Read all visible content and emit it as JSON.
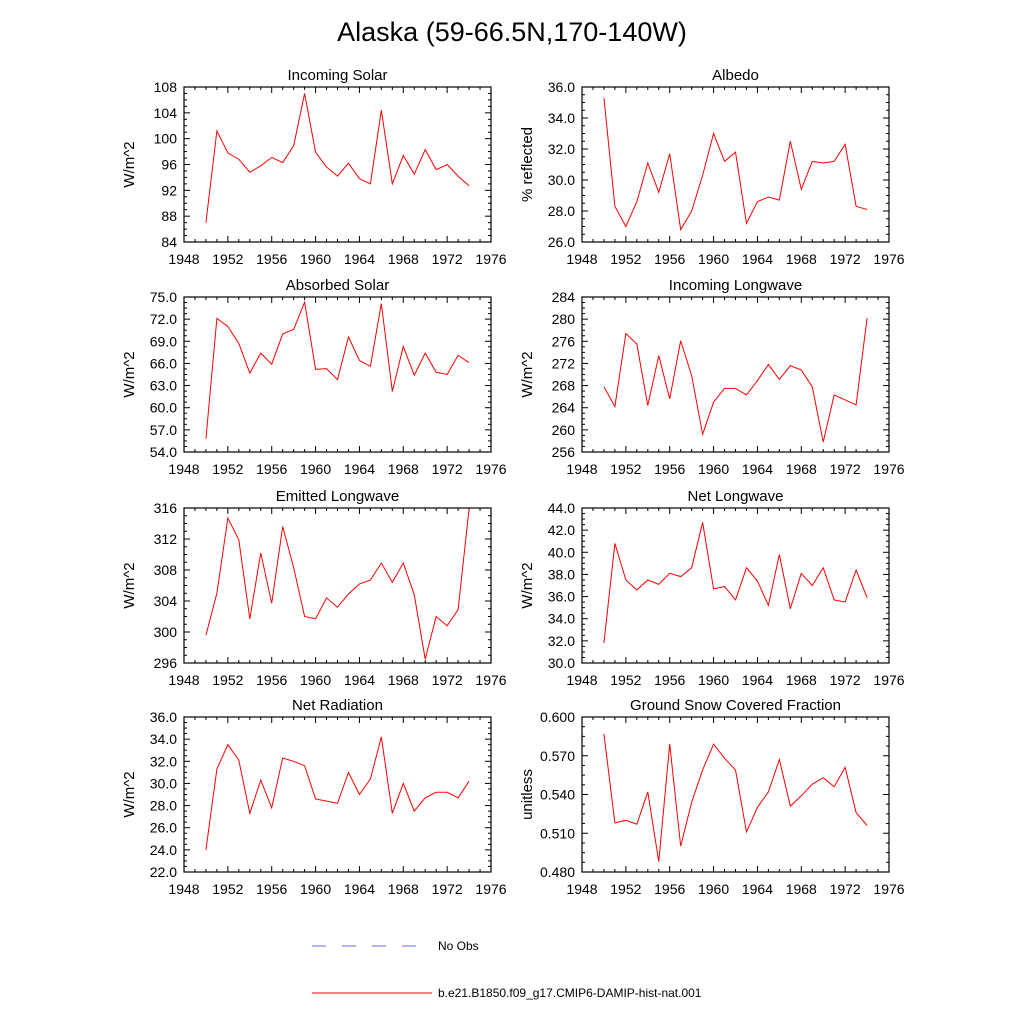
{
  "figure": {
    "title": "Alaska (59-66.5N,170-140W)",
    "legend": [
      {
        "label": "No Obs",
        "color": "#6a6ad8",
        "style": "dashed"
      },
      {
        "label": "b.e21.B1850.f09_g17.CMIP6-DAMIP-hist-nat.001",
        "color": "#ff0000",
        "style": "solid"
      }
    ]
  },
  "chart_data": [
    {
      "type": "line",
      "title": "Incoming Solar",
      "ylabel": "W/m^2",
      "xlim": [
        1948,
        1976
      ],
      "xticks": [
        1948,
        1952,
        1956,
        1960,
        1964,
        1968,
        1972,
        1976
      ],
      "ylim": [
        84,
        108
      ],
      "yticks": [
        "84",
        "88",
        "92",
        "96",
        "100",
        "104",
        "108"
      ],
      "x": [
        1950,
        1951,
        1952,
        1953,
        1954,
        1955,
        1956,
        1957,
        1958,
        1959,
        1960,
        1961,
        1962,
        1963,
        1964,
        1965,
        1966,
        1967,
        1968,
        1969,
        1970,
        1971,
        1972,
        1973,
        1974
      ],
      "series": [
        {
          "color": "#ff0000",
          "values": [
            87.0,
            101.2,
            97.8,
            96.8,
            94.8,
            95.8,
            97.1,
            96.3,
            98.9,
            107.0,
            97.9,
            95.6,
            94.2,
            96.2,
            93.8,
            93.0,
            104.4,
            93.0,
            97.4,
            94.5,
            98.3,
            95.2,
            96.0,
            94.2,
            92.7
          ]
        }
      ]
    },
    {
      "type": "line",
      "title": "Albedo",
      "ylabel": "% reflected",
      "xlim": [
        1948,
        1976
      ],
      "xticks": [
        1948,
        1952,
        1956,
        1960,
        1964,
        1968,
        1972,
        1976
      ],
      "ylim": [
        26,
        36
      ],
      "yticks": [
        "26.0",
        "28.0",
        "30.0",
        "32.0",
        "34.0",
        "36.0"
      ],
      "x": [
        1950,
        1951,
        1952,
        1953,
        1954,
        1955,
        1956,
        1957,
        1958,
        1959,
        1960,
        1961,
        1962,
        1963,
        1964,
        1965,
        1966,
        1967,
        1968,
        1969,
        1970,
        1971,
        1972,
        1973,
        1974
      ],
      "series": [
        {
          "color": "#ff0000",
          "values": [
            35.3,
            28.3,
            27.0,
            28.6,
            31.1,
            29.2,
            31.7,
            26.8,
            28.0,
            30.3,
            33.0,
            31.2,
            31.8,
            27.2,
            28.6,
            28.9,
            28.7,
            32.5,
            29.4,
            31.2,
            31.1,
            31.2,
            32.3,
            28.3,
            28.1
          ]
        }
      ]
    },
    {
      "type": "line",
      "title": "Absorbed Solar",
      "ylabel": "W/m^2",
      "xlim": [
        1948,
        1976
      ],
      "xticks": [
        1948,
        1952,
        1956,
        1960,
        1964,
        1968,
        1972,
        1976
      ],
      "ylim": [
        54,
        75
      ],
      "yticks": [
        "54.0",
        "57.0",
        "60.0",
        "63.0",
        "66.0",
        "69.0",
        "72.0",
        "75.0"
      ],
      "x": [
        1950,
        1951,
        1952,
        1953,
        1954,
        1955,
        1956,
        1957,
        1958,
        1959,
        1960,
        1961,
        1962,
        1963,
        1964,
        1965,
        1966,
        1967,
        1968,
        1969,
        1970,
        1971,
        1972,
        1973,
        1974
      ],
      "series": [
        {
          "color": "#ff0000",
          "values": [
            55.8,
            72.1,
            71.0,
            68.7,
            64.7,
            67.4,
            65.9,
            70.0,
            70.6,
            74.3,
            65.2,
            65.3,
            63.8,
            69.6,
            66.4,
            65.6,
            74.1,
            62.2,
            68.3,
            64.4,
            67.4,
            64.8,
            64.5,
            67.1,
            66.1
          ]
        }
      ]
    },
    {
      "type": "line",
      "title": "Incoming Longwave",
      "ylabel": "W/m^2",
      "xlim": [
        1948,
        1976
      ],
      "xticks": [
        1948,
        1952,
        1956,
        1960,
        1964,
        1968,
        1972,
        1976
      ],
      "ylim": [
        256,
        284
      ],
      "yticks": [
        "256",
        "260",
        "264",
        "268",
        "272",
        "276",
        "280",
        "284"
      ],
      "x": [
        1950,
        1951,
        1952,
        1953,
        1954,
        1955,
        1956,
        1957,
        1958,
        1959,
        1960,
        1961,
        1962,
        1963,
        1964,
        1965,
        1966,
        1967,
        1968,
        1969,
        1970,
        1971,
        1972,
        1973,
        1974
      ],
      "series": [
        {
          "color": "#ff0000",
          "values": [
            267.8,
            264.2,
            277.4,
            275.5,
            264.4,
            273.4,
            265.6,
            276.1,
            269.8,
            259.2,
            265.0,
            267.5,
            267.5,
            266.3,
            268.9,
            271.8,
            269.1,
            271.6,
            270.8,
            267.8,
            257.8,
            266.3,
            265.4,
            264.5,
            280.2
          ]
        }
      ]
    },
    {
      "type": "line",
      "title": "Emitted Longwave",
      "ylabel": "W/m^2",
      "xlim": [
        1948,
        1976
      ],
      "xticks": [
        1948,
        1952,
        1956,
        1960,
        1964,
        1968,
        1972,
        1976
      ],
      "ylim": [
        296,
        316
      ],
      "yticks": [
        "296",
        "300",
        "304",
        "308",
        "312",
        "316"
      ],
      "x": [
        1950,
        1951,
        1952,
        1953,
        1954,
        1955,
        1956,
        1957,
        1958,
        1959,
        1960,
        1961,
        1962,
        1963,
        1964,
        1965,
        1966,
        1967,
        1968,
        1969,
        1970,
        1971,
        1972,
        1973,
        1974
      ],
      "series": [
        {
          "color": "#ff0000",
          "values": [
            299.6,
            305.0,
            314.7,
            311.9,
            301.7,
            310.2,
            303.7,
            313.6,
            308.3,
            302.0,
            301.7,
            304.4,
            303.2,
            304.9,
            306.2,
            306.7,
            308.9,
            306.4,
            308.9,
            304.8,
            296.5,
            302.0,
            300.8,
            302.9,
            315.9
          ]
        }
      ]
    },
    {
      "type": "line",
      "title": "Net Longwave",
      "ylabel": "W/m^2",
      "xlim": [
        1948,
        1976
      ],
      "xticks": [
        1948,
        1952,
        1956,
        1960,
        1964,
        1968,
        1972,
        1976
      ],
      "ylim": [
        30,
        44
      ],
      "yticks": [
        "30.0",
        "32.0",
        "34.0",
        "36.0",
        "38.0",
        "40.0",
        "42.0",
        "44.0"
      ],
      "x": [
        1950,
        1951,
        1952,
        1953,
        1954,
        1955,
        1956,
        1957,
        1958,
        1959,
        1960,
        1961,
        1962,
        1963,
        1964,
        1965,
        1966,
        1967,
        1968,
        1969,
        1970,
        1971,
        1972,
        1973,
        1974
      ],
      "series": [
        {
          "color": "#ff0000",
          "values": [
            31.8,
            40.8,
            37.5,
            36.6,
            37.5,
            37.1,
            38.1,
            37.8,
            38.6,
            42.7,
            36.7,
            36.9,
            35.7,
            38.6,
            37.4,
            35.2,
            39.8,
            34.9,
            38.1,
            37.0,
            38.6,
            35.7,
            35.5,
            38.4,
            35.9
          ]
        }
      ]
    },
    {
      "type": "line",
      "title": "Net Radiation",
      "ylabel": "W/m^2",
      "xlim": [
        1948,
        1976
      ],
      "xticks": [
        1948,
        1952,
        1956,
        1960,
        1964,
        1968,
        1972,
        1976
      ],
      "ylim": [
        22,
        36
      ],
      "yticks": [
        "22.0",
        "24.0",
        "26.0",
        "28.0",
        "30.0",
        "32.0",
        "34.0",
        "36.0"
      ],
      "x": [
        1950,
        1951,
        1952,
        1953,
        1954,
        1955,
        1956,
        1957,
        1958,
        1959,
        1960,
        1961,
        1962,
        1963,
        1964,
        1965,
        1966,
        1967,
        1968,
        1969,
        1970,
        1971,
        1972,
        1973,
        1974
      ],
      "series": [
        {
          "color": "#ff0000",
          "values": [
            24.0,
            31.3,
            33.5,
            32.1,
            27.3,
            30.3,
            27.8,
            32.3,
            32.0,
            31.6,
            28.6,
            28.4,
            28.2,
            31.0,
            29.0,
            30.4,
            34.2,
            27.3,
            30.0,
            27.5,
            28.7,
            29.2,
            29.2,
            28.7,
            30.2
          ]
        }
      ]
    },
    {
      "type": "line",
      "title": "Ground Snow Covered Fraction",
      "ylabel": "unitless",
      "xlim": [
        1948,
        1976
      ],
      "xticks": [
        1948,
        1952,
        1956,
        1960,
        1964,
        1968,
        1972,
        1976
      ],
      "ylim": [
        0.48,
        0.6
      ],
      "yticks": [
        "0.480",
        "0.510",
        "0.540",
        "0.570",
        "0.600"
      ],
      "x": [
        1950,
        1951,
        1952,
        1953,
        1954,
        1955,
        1956,
        1957,
        1958,
        1959,
        1960,
        1961,
        1962,
        1963,
        1964,
        1965,
        1966,
        1967,
        1968,
        1969,
        1970,
        1971,
        1972,
        1973,
        1974
      ],
      "series": [
        {
          "color": "#ff0000",
          "values": [
            0.587,
            0.518,
            0.52,
            0.517,
            0.542,
            0.488,
            0.579,
            0.5,
            0.534,
            0.559,
            0.579,
            0.568,
            0.559,
            0.511,
            0.53,
            0.542,
            0.567,
            0.531,
            0.539,
            0.548,
            0.553,
            0.546,
            0.561,
            0.526,
            0.516
          ]
        }
      ]
    }
  ]
}
